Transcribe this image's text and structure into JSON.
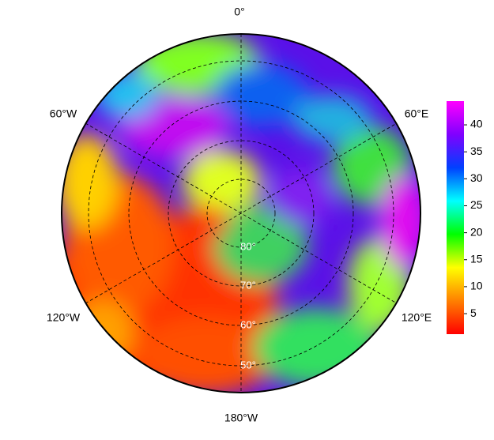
{
  "map": {
    "meridian_labels": [
      "0°",
      "60°W",
      "60°E",
      "120°W",
      "120°E",
      "180°W"
    ],
    "lat_labels": [
      "80°",
      "70°",
      "60°",
      "50°"
    ]
  },
  "colorbar": {
    "ticks": [
      5,
      10,
      15,
      20,
      25,
      30,
      35,
      40
    ],
    "lim": [
      1.2,
      44.4
    ],
    "colors": [
      "#ff0000",
      "#ff8000",
      "#ffff00",
      "#00ff00",
      "#00ffff",
      "#0040ff",
      "#8000ff",
      "#ff00ff"
    ]
  }
}
